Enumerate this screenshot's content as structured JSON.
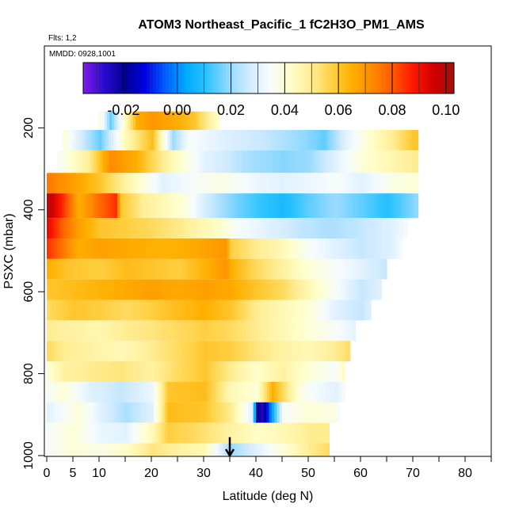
{
  "chart_data": {
    "type": "heatmap",
    "title": "ATOM3 Northeast_Pacific_1 fC2H3O_PM1_AMS",
    "flights_label": "Flts: 1,2",
    "dates_label": "MMDD: 0928,1001",
    "xlabel": "Latitude (deg N)",
    "ylabel": "PSXC (mbar)",
    "xlim": [
      0,
      85
    ],
    "ylim": [
      1000,
      0
    ],
    "x_ticks": [
      0,
      5,
      10,
      20,
      30,
      40,
      50,
      60,
      70,
      80
    ],
    "x_tick_labels": [
      "0",
      "5",
      "10",
      "20",
      "30",
      "40",
      "50",
      "60",
      "70",
      "80"
    ],
    "x_minor_ticks": [
      15,
      25,
      35,
      45,
      55,
      65,
      75,
      85
    ],
    "y_ticks": [
      200,
      400,
      600,
      800,
      1000
    ],
    "y_tick_labels": [
      "200",
      "400",
      "600",
      "800",
      "1000"
    ],
    "colorbar": {
      "min": -0.035,
      "max": 0.103,
      "ticks": [
        -0.02,
        0.0,
        0.02,
        0.04,
        0.06,
        0.08,
        0.1
      ],
      "tick_labels": [
        "-0.02",
        "0.00",
        "0.02",
        "0.04",
        "0.06",
        "0.08",
        "0.10"
      ],
      "colors": [
        "#7e1be8",
        "#2a0cd0",
        "#00008f",
        "#0000e4",
        "#0060ff",
        "#00aaff",
        "#2ec3ff",
        "#8fd8ff",
        "#cfeaff",
        "#f5fbff",
        "#ffffcc",
        "#ffef99",
        "#ffd34a",
        "#ffb000",
        "#ff8a00",
        "#ff5a00",
        "#ff1800",
        "#d20000",
        "#a01010"
      ]
    },
    "marker": {
      "latitude": 35,
      "label": "arrow"
    },
    "bands": [
      {
        "p": [
          160,
          205
        ],
        "segments": [
          [
            10,
            0.04
          ],
          [
            12,
            0.015
          ],
          [
            15,
            0.045
          ],
          [
            17,
            0.065
          ],
          [
            20,
            0.07
          ],
          [
            25,
            0.065
          ],
          [
            28,
            0.06
          ],
          [
            33,
            0.04
          ]
        ]
      },
      {
        "p": [
          205,
          255
        ],
        "segments": [
          [
            3,
            0.04
          ],
          [
            7,
            0.025
          ],
          [
            10,
            0.015
          ],
          [
            15,
            0.045
          ],
          [
            20,
            0.062
          ],
          [
            24,
            0.02
          ],
          [
            27,
            0.035
          ],
          [
            33,
            0.03
          ],
          [
            36,
            0.028
          ],
          [
            42,
            0.025
          ],
          [
            48,
            0.02
          ],
          [
            53,
            0.015
          ],
          [
            57,
            0.03
          ],
          [
            61,
            0.04
          ],
          [
            66,
            0.05
          ],
          [
            70,
            0.06
          ],
          [
            71,
            0.06
          ]
        ]
      },
      {
        "p": [
          255,
          310
        ],
        "segments": [
          [
            2,
            0.035
          ],
          [
            8,
            0.05
          ],
          [
            12,
            0.072
          ],
          [
            17,
            0.065
          ],
          [
            22,
            0.05
          ],
          [
            26,
            0.04
          ],
          [
            30,
            0.03
          ],
          [
            33,
            0.028
          ],
          [
            38,
            0.022
          ],
          [
            45,
            0.018
          ],
          [
            50,
            0.02
          ],
          [
            55,
            0.03
          ],
          [
            60,
            0.04
          ],
          [
            65,
            0.045
          ],
          [
            70,
            0.05
          ],
          [
            71,
            0.05
          ]
        ]
      },
      {
        "p": [
          310,
          360
        ],
        "segments": [
          [
            0,
            0.075
          ],
          [
            5,
            0.068
          ],
          [
            10,
            0.06
          ],
          [
            14,
            0.05
          ],
          [
            18,
            0.04
          ],
          [
            22,
            0.03
          ],
          [
            28,
            0.035
          ],
          [
            33,
            0.038
          ],
          [
            40,
            0.032
          ],
          [
            45,
            0.03
          ],
          [
            50,
            0.032
          ],
          [
            55,
            0.035
          ],
          [
            60,
            0.03
          ],
          [
            66,
            0.038
          ],
          [
            71,
            0.04
          ]
        ]
      },
      {
        "p": [
          360,
          420
        ],
        "segments": [
          [
            0,
            0.1
          ],
          [
            3,
            0.085
          ],
          [
            6,
            0.065
          ],
          [
            10,
            0.078
          ],
          [
            13,
            0.085
          ],
          [
            14,
            0.06
          ],
          [
            18,
            0.05
          ],
          [
            22,
            0.045
          ],
          [
            26,
            0.04
          ],
          [
            30,
            0.028
          ],
          [
            35,
            0.018
          ],
          [
            40,
            0.012
          ],
          [
            45,
            0.008
          ],
          [
            50,
            0.015
          ],
          [
            55,
            0.02
          ],
          [
            60,
            0.015
          ],
          [
            65,
            0.01
          ],
          [
            70,
            0.018
          ],
          [
            71,
            0.02
          ]
        ]
      },
      {
        "p": [
          420,
          470
        ],
        "segments": [
          [
            0,
            0.092
          ],
          [
            3,
            0.078
          ],
          [
            6,
            0.068
          ],
          [
            10,
            0.06
          ],
          [
            15,
            0.058
          ],
          [
            20,
            0.055
          ],
          [
            26,
            0.05
          ],
          [
            30,
            0.045
          ],
          [
            33,
            0.042
          ],
          [
            36,
            0.035
          ],
          [
            42,
            0.03
          ],
          [
            48,
            0.025
          ],
          [
            54,
            0.022
          ],
          [
            60,
            0.025
          ],
          [
            66,
            0.03
          ],
          [
            69,
            0.035
          ]
        ]
      },
      {
        "p": [
          470,
          520
        ],
        "segments": [
          [
            0,
            0.085
          ],
          [
            3,
            0.075
          ],
          [
            6,
            0.065
          ],
          [
            10,
            0.068
          ],
          [
            15,
            0.066
          ],
          [
            22,
            0.064
          ],
          [
            28,
            0.066
          ],
          [
            34,
            0.07
          ],
          [
            35,
            0.058
          ],
          [
            40,
            0.05
          ],
          [
            45,
            0.045
          ],
          [
            50,
            0.035
          ],
          [
            55,
            0.03
          ],
          [
            60,
            0.025
          ],
          [
            66,
            0.03
          ],
          [
            68,
            0.035
          ]
        ]
      },
      {
        "p": [
          520,
          570
        ],
        "segments": [
          [
            0,
            0.065
          ],
          [
            4,
            0.06
          ],
          [
            10,
            0.058
          ],
          [
            15,
            0.062
          ],
          [
            20,
            0.06
          ],
          [
            25,
            0.058
          ],
          [
            30,
            0.064
          ],
          [
            34,
            0.07
          ],
          [
            35,
            0.065
          ],
          [
            40,
            0.055
          ],
          [
            45,
            0.048
          ],
          [
            50,
            0.04
          ],
          [
            55,
            0.035
          ],
          [
            60,
            0.03
          ],
          [
            65,
            0.025
          ]
        ]
      },
      {
        "p": [
          570,
          620
        ],
        "segments": [
          [
            0,
            0.06
          ],
          [
            5,
            0.062
          ],
          [
            10,
            0.064
          ],
          [
            15,
            0.066
          ],
          [
            20,
            0.068
          ],
          [
            25,
            0.066
          ],
          [
            30,
            0.068
          ],
          [
            35,
            0.066
          ],
          [
            40,
            0.06
          ],
          [
            45,
            0.055
          ],
          [
            50,
            0.045
          ],
          [
            55,
            0.035
          ],
          [
            60,
            0.025
          ],
          [
            64,
            0.03
          ]
        ]
      },
      {
        "p": [
          620,
          670
        ],
        "segments": [
          [
            0,
            0.055
          ],
          [
            5,
            0.06
          ],
          [
            10,
            0.058
          ],
          [
            15,
            0.055
          ],
          [
            20,
            0.058
          ],
          [
            25,
            0.062
          ],
          [
            30,
            0.065
          ],
          [
            35,
            0.06
          ],
          [
            40,
            0.05
          ],
          [
            45,
            0.045
          ],
          [
            50,
            0.04
          ],
          [
            55,
            0.03
          ],
          [
            60,
            0.025
          ],
          [
            62,
            0.03
          ]
        ]
      },
      {
        "p": [
          670,
          720
        ],
        "segments": [
          [
            0,
            0.05
          ],
          [
            5,
            0.048
          ],
          [
            10,
            0.046
          ],
          [
            15,
            0.05
          ],
          [
            20,
            0.052
          ],
          [
            25,
            0.055
          ],
          [
            30,
            0.058
          ],
          [
            35,
            0.055
          ],
          [
            40,
            0.05
          ],
          [
            45,
            0.045
          ],
          [
            50,
            0.04
          ],
          [
            55,
            0.035
          ],
          [
            59,
            0.03
          ]
        ]
      },
      {
        "p": [
          720,
          770
        ],
        "segments": [
          [
            0,
            0.055
          ],
          [
            3,
            0.05
          ],
          [
            8,
            0.048
          ],
          [
            14,
            0.045
          ],
          [
            20,
            0.05
          ],
          [
            25,
            0.055
          ],
          [
            30,
            0.06
          ],
          [
            35,
            0.058
          ],
          [
            40,
            0.052
          ],
          [
            45,
            0.048
          ],
          [
            50,
            0.045
          ],
          [
            55,
            0.05
          ],
          [
            58,
            0.055
          ]
        ]
      },
      {
        "p": [
          770,
          820
        ],
        "segments": [
          [
            0,
            0.04
          ],
          [
            3,
            0.048
          ],
          [
            8,
            0.05
          ],
          [
            14,
            0.052
          ],
          [
            20,
            0.048
          ],
          [
            25,
            0.055
          ],
          [
            30,
            0.06
          ],
          [
            35,
            0.05
          ],
          [
            40,
            0.042
          ],
          [
            45,
            0.048
          ],
          [
            50,
            0.04
          ],
          [
            55,
            0.035
          ],
          [
            57,
            0.045
          ]
        ]
      },
      {
        "p": [
          820,
          870
        ],
        "segments": [
          [
            0,
            0.035
          ],
          [
            3,
            0.04
          ],
          [
            8,
            0.03
          ],
          [
            14,
            0.025
          ],
          [
            20,
            0.032
          ],
          [
            23,
            0.06
          ],
          [
            30,
            0.062
          ],
          [
            35,
            0.045
          ],
          [
            40,
            0.04
          ],
          [
            43,
            0.065
          ],
          [
            48,
            0.04
          ],
          [
            50,
            0.035
          ],
          [
            55,
            0.03
          ],
          [
            57,
            0.035
          ]
        ]
      },
      {
        "p": [
          870,
          920
        ],
        "segments": [
          [
            0,
            0.03
          ],
          [
            3,
            0.035
          ],
          [
            6,
            0.04
          ],
          [
            10,
            0.03
          ],
          [
            15,
            0.022
          ],
          [
            20,
            0.03
          ],
          [
            23,
            0.062
          ],
          [
            30,
            0.06
          ],
          [
            35,
            0.05
          ],
          [
            39,
            0.03
          ],
          [
            40,
            -0.02
          ],
          [
            41,
            -0.025
          ],
          [
            43,
            0.005
          ],
          [
            45,
            0.035
          ],
          [
            50,
            0.04
          ],
          [
            55,
            0.038
          ],
          [
            56,
            0.03
          ]
        ]
      },
      {
        "p": [
          920,
          970
        ],
        "segments": [
          [
            0,
            0.035
          ],
          [
            5,
            0.04
          ],
          [
            10,
            0.032
          ],
          [
            15,
            0.03
          ],
          [
            20,
            0.045
          ],
          [
            23,
            0.058
          ],
          [
            28,
            0.055
          ],
          [
            35,
            0.048
          ],
          [
            40,
            0.042
          ],
          [
            45,
            0.045
          ],
          [
            50,
            0.05
          ],
          [
            54,
            0.05
          ]
        ]
      },
      {
        "p": [
          970,
          1010
        ],
        "segments": [
          [
            0,
            0.035
          ],
          [
            5,
            0.04
          ],
          [
            10,
            0.038
          ],
          [
            15,
            0.042
          ],
          [
            20,
            0.052
          ],
          [
            25,
            0.048
          ],
          [
            30,
            0.045
          ],
          [
            35,
            0.02
          ],
          [
            40,
            0.03
          ],
          [
            45,
            0.04
          ],
          [
            50,
            0.05
          ],
          [
            54,
            0.055
          ]
        ]
      }
    ]
  }
}
